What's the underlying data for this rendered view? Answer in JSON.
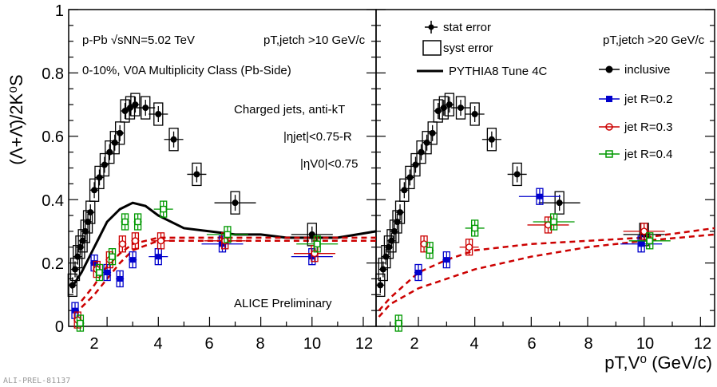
{
  "chart_data": [
    {
      "type": "scatter",
      "panel": "left",
      "x_range": [
        0.5,
        12.5
      ],
      "y_range": [
        0,
        1
      ],
      "xticks": [
        "2",
        "4",
        "6",
        "8",
        "10",
        "12"
      ],
      "yticks": [
        "0",
        "0.2",
        "0.4",
        "0.6",
        "0.8",
        "1"
      ],
      "annotations": {
        "collision": "p-Pb √sNN=5.02 TeV",
        "pt_cut": "pT,jetch >10 GeV/c",
        "multiplicity": "0-10%, V0A Multiplicity Class (Pb-Side)",
        "jets": "Charged jets, anti-kT",
        "eta_jet": "|ηjet|<0.75-R",
        "eta_v0": "|ηV0|<0.75",
        "preliminary": "ALICE Preliminary"
      },
      "series": [
        {
          "name": "inclusive",
          "color": "#000000",
          "x": [
            0.65,
            0.75,
            0.85,
            0.95,
            1.05,
            1.15,
            1.25,
            1.35,
            1.5,
            1.7,
            1.9,
            2.1,
            2.3,
            2.5,
            2.7,
            2.9,
            3.1,
            3.5,
            4.0,
            4.6,
            5.5,
            7.0,
            10.0
          ],
          "y": [
            0.13,
            0.18,
            0.22,
            0.25,
            0.27,
            0.3,
            0.33,
            0.36,
            0.43,
            0.47,
            0.51,
            0.55,
            0.58,
            0.61,
            0.68,
            0.69,
            0.7,
            0.69,
            0.67,
            0.59,
            0.48,
            0.39,
            0.29
          ]
        },
        {
          "name": "jet R=0.2",
          "color": "#0000cc",
          "x": [
            0.75,
            1.5,
            2.0,
            2.5,
            3.0,
            4.0,
            6.5,
            10.0
          ],
          "y": [
            0.05,
            0.2,
            0.17,
            0.15,
            0.21,
            0.22,
            0.26,
            0.22
          ]
        },
        {
          "name": "jet R=0.3",
          "color": "#cc0000",
          "x": [
            0.85,
            1.6,
            2.1,
            2.6,
            3.1,
            4.1,
            6.6,
            10.1
          ],
          "y": [
            0.02,
            0.18,
            0.21,
            0.26,
            0.27,
            0.27,
            0.27,
            0.23
          ]
        },
        {
          "name": "jet R=0.4",
          "color": "#009900",
          "x": [
            0.95,
            1.7,
            2.2,
            2.7,
            3.2,
            4.2,
            6.7,
            10.2
          ],
          "y": [
            0.01,
            0.17,
            0.22,
            0.33,
            0.33,
            0.37,
            0.29,
            0.26
          ]
        },
        {
          "name": "PYTHIA8 Tune 4C",
          "color": "#000000",
          "x": [
            0.6,
            1.0,
            1.5,
            2.0,
            2.5,
            3.0,
            3.5,
            4.0,
            5.0,
            6.0,
            7.0,
            8.0,
            9.0,
            10.0,
            11.0,
            12.5
          ],
          "y": [
            0.12,
            0.17,
            0.25,
            0.33,
            0.37,
            0.39,
            0.38,
            0.35,
            0.31,
            0.3,
            0.29,
            0.29,
            0.28,
            0.28,
            0.28,
            0.3
          ]
        }
      ]
    },
    {
      "type": "scatter",
      "panel": "right",
      "x_range": [
        0.5,
        12.5
      ],
      "y_range": [
        0,
        1
      ],
      "xticks": [
        "2",
        "4",
        "6",
        "8",
        "10",
        "12"
      ],
      "annotations": {
        "pt_cut": "pT,jetch >20 GeV/c"
      },
      "series": [
        {
          "name": "inclusive",
          "color": "#000000",
          "x": [
            0.65,
            0.75,
            0.85,
            0.95,
            1.05,
            1.15,
            1.25,
            1.35,
            1.5,
            1.7,
            1.9,
            2.1,
            2.3,
            2.5,
            2.7,
            2.9,
            3.1,
            3.5,
            4.0,
            4.6,
            5.5,
            7.0,
            10.0
          ],
          "y": [
            0.13,
            0.18,
            0.22,
            0.25,
            0.27,
            0.3,
            0.33,
            0.36,
            0.43,
            0.47,
            0.51,
            0.55,
            0.58,
            0.61,
            0.68,
            0.69,
            0.7,
            0.69,
            0.67,
            0.59,
            0.48,
            0.39,
            0.29
          ]
        },
        {
          "name": "jet R=0.2",
          "color": "#0000cc",
          "x": [
            2.0,
            3.0,
            6.3,
            9.9
          ],
          "y": [
            0.17,
            0.21,
            0.41,
            0.26
          ]
        },
        {
          "name": "jet R=0.3",
          "color": "#cc0000",
          "x": [
            2.2,
            3.8,
            6.6,
            10.0
          ],
          "y": [
            0.26,
            0.25,
            0.32,
            0.3
          ]
        },
        {
          "name": "jet R=0.4",
          "color": "#009900",
          "x": [
            1.3,
            2.4,
            4.0,
            6.8,
            10.2
          ],
          "y": [
            0.01,
            0.24,
            0.31,
            0.33,
            0.27
          ]
        }
      ]
    }
  ],
  "legend": {
    "stat": "stat error",
    "syst": "syst error",
    "pythia": "PYTHIA8 Tune 4C",
    "inclusive": "inclusive",
    "r02": "jet R=0.2",
    "r03": "jet R=0.3",
    "r04": "jet R=0.4"
  },
  "axes": {
    "ylabel": "(Λ+Λ̄)/2K⁰S",
    "xlabel": "pT,V⁰ (GeV/c)"
  },
  "footer": "ALI-PREL-81137"
}
